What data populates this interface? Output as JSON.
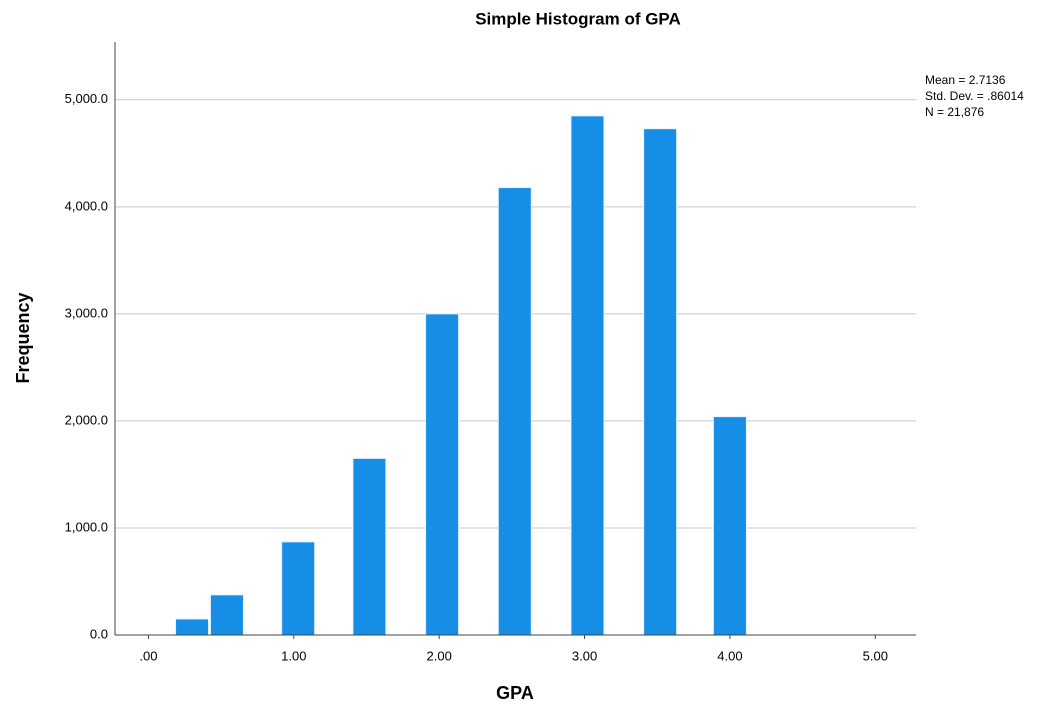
{
  "chart_data": {
    "type": "bar",
    "title": "Simple Histogram of GPA",
    "x_label": "GPA",
    "y_label": "Frequency",
    "stats": [
      "Mean = 2.7136",
      "Std. Dev. = .86014",
      "N = 21,876"
    ],
    "x": [
      0.3,
      0.54,
      1.03,
      1.52,
      2.02,
      2.52,
      3.02,
      3.52,
      4.0
    ],
    "values": [
      150,
      375,
      870,
      1650,
      3000,
      4180,
      4850,
      4730,
      2040
    ],
    "color": "#168ee6",
    "xlim": [
      -0.23,
      5.28
    ],
    "xticks": [
      {
        "value": 0,
        "label": ".00"
      },
      {
        "value": 1,
        "label": "1.00"
      },
      {
        "value": 2,
        "label": "2.00"
      },
      {
        "value": 3,
        "label": "3.00"
      },
      {
        "value": 4,
        "label": "4.00"
      },
      {
        "value": 5,
        "label": "5.00"
      }
    ],
    "ylim": [
      0,
      5540
    ],
    "yticks": [
      {
        "value": 0,
        "label": "0.0"
      },
      {
        "value": 1000,
        "label": "1,000.0"
      },
      {
        "value": 2000,
        "label": "2,000.0"
      },
      {
        "value": 3000,
        "label": "3,000.0"
      },
      {
        "value": 4000,
        "label": "4,000.0"
      },
      {
        "value": 5000,
        "label": "5,000.0"
      }
    ],
    "grid": true
  }
}
